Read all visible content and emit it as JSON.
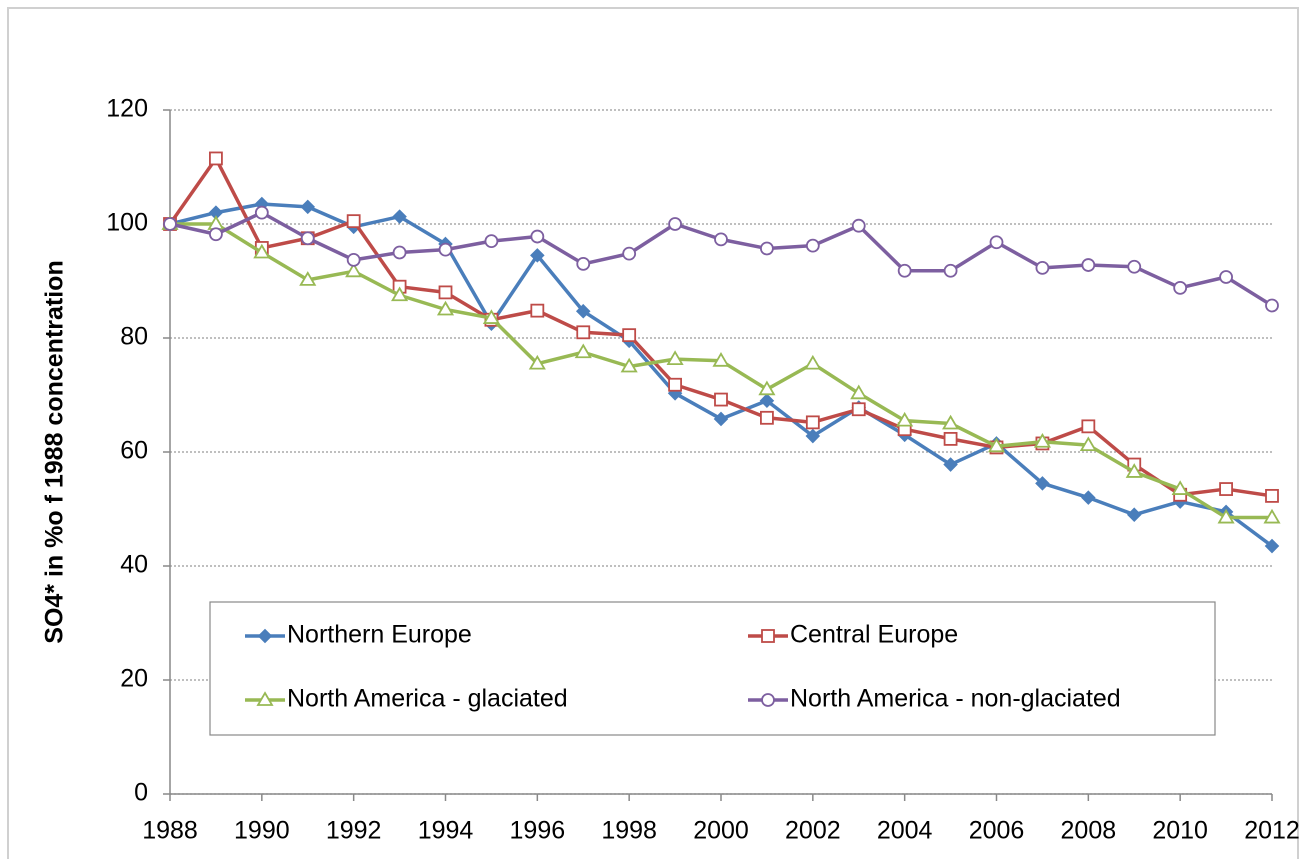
{
  "chart_data": {
    "type": "line",
    "y_label": "SO4* in %o f 1988 concentration",
    "x": [
      1988,
      1989,
      1990,
      1991,
      1992,
      1993,
      1994,
      1995,
      1996,
      1997,
      1998,
      1999,
      2000,
      2001,
      2002,
      2003,
      2004,
      2005,
      2006,
      2007,
      2008,
      2009,
      2010,
      2011,
      2012
    ],
    "xlim": [
      1988,
      2012
    ],
    "xticks": [
      1988,
      1990,
      1992,
      1994,
      1996,
      1998,
      2000,
      2002,
      2004,
      2006,
      2008,
      2010,
      2012
    ],
    "ylim": [
      0,
      120
    ],
    "yticks": [
      0,
      20,
      40,
      60,
      80,
      100,
      120
    ],
    "grid": true,
    "legend": "bottom",
    "series": [
      {
        "name": "Northern Europe",
        "color": "#4a7ebb",
        "marker": "diamond",
        "values": [
          100,
          102,
          103.5,
          103,
          99.5,
          101.3,
          96.5,
          82.5,
          94.5,
          84.7,
          79.5,
          70.3,
          65.8,
          69,
          62.8,
          67.8,
          63,
          57.8,
          61.5,
          54.5,
          52,
          49,
          51.3,
          49.5,
          43.5
        ]
      },
      {
        "name": "Central Europe",
        "color": "#be4b48",
        "marker": "square",
        "values": [
          100,
          111.5,
          95.8,
          97.5,
          100.5,
          89,
          88,
          83.2,
          84.8,
          81,
          80.5,
          71.8,
          69.2,
          66,
          65.2,
          67.5,
          64,
          62.3,
          60.8,
          61.5,
          64.5,
          57.8,
          52.5,
          53.5,
          52.3
        ]
      },
      {
        "name": "North America - glaciated",
        "color": "#98b954",
        "marker": "triangle",
        "values": [
          100,
          100,
          95,
          90.2,
          91.7,
          87.5,
          85,
          83.5,
          75.5,
          77.5,
          75,
          76.3,
          76,
          71,
          75.5,
          70.3,
          65.5,
          65,
          61,
          61.8,
          61.2,
          56.5,
          53.5,
          48.5,
          48.5
        ]
      },
      {
        "name": "North America - non-glaciated",
        "color": "#7d5fa0",
        "marker": "circle",
        "values": [
          100,
          98.2,
          102,
          97.5,
          93.7,
          95,
          95.5,
          97,
          97.8,
          93,
          94.8,
          100,
          97.3,
          95.7,
          96.2,
          99.7,
          91.8,
          91.8,
          96.8,
          92.3,
          92.8,
          92.5,
          88.8,
          90.7,
          85.7
        ]
      }
    ]
  }
}
